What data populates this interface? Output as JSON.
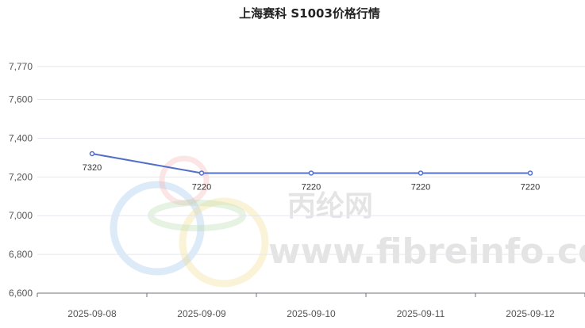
{
  "chart_data": {
    "type": "line",
    "title": "上海赛科  S1003价格行情",
    "xlabel": "",
    "ylabel": "",
    "x": [
      "2025-09-08",
      "2025-09-09",
      "2025-09-10",
      "2025-09-11",
      "2025-09-12"
    ],
    "series": [
      {
        "values": [
          7320,
          7220,
          7220,
          7220,
          7220
        ]
      }
    ],
    "ylim": [
      6600,
      7770
    ],
    "yticks": [
      "7,770",
      "7,600",
      "7,400",
      "7,200",
      "7,000",
      "6,800",
      "6,600"
    ],
    "grid": true,
    "line_color": "#5470c6"
  },
  "watermark": {
    "cn": "丙纶网",
    "url": "www.fibreinfo.com"
  }
}
